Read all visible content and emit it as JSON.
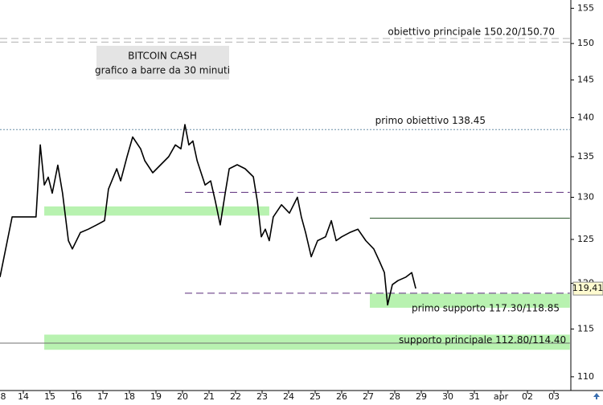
{
  "chart_data": {
    "type": "line",
    "title": "BITCOIN CASH",
    "subtitle": "grafico a barre da 30 minuti",
    "categories": [
      "8",
      "14",
      "15",
      "16",
      "17",
      "18",
      "19",
      "20",
      "21",
      "22",
      "23",
      "24",
      "25",
      "26",
      "27",
      "28",
      "29",
      "30",
      "31",
      "apr",
      "02",
      "03"
    ],
    "log_scale": true,
    "ylim": [
      108.6,
      156.2
    ],
    "yticks": [
      110,
      115,
      120,
      125,
      130,
      135,
      140,
      145,
      150,
      155
    ],
    "series": [
      {
        "name": "BITCOIN CASH",
        "color": "#000000",
        "x": [
          0.12,
          0.58,
          0.73,
          1.48,
          1.64,
          1.79,
          1.94,
          2.09,
          2.3,
          2.48,
          2.7,
          2.85,
          3.15,
          3.45,
          3.76,
          4.06,
          4.21,
          4.52,
          4.67,
          4.91,
          5.12,
          5.42,
          5.58,
          5.88,
          6.18,
          6.48,
          6.73,
          6.94,
          7.09,
          7.24,
          7.39,
          7.55,
          7.7,
          7.85,
          8.06,
          8.24,
          8.42,
          8.61,
          8.76,
          9.06,
          9.36,
          9.67,
          9.82,
          9.97,
          10.12,
          10.27,
          10.42,
          10.73,
          11.03,
          11.33,
          11.48,
          11.64,
          11.85,
          12.09,
          12.39,
          12.61,
          12.79,
          13.0,
          13.3,
          13.61,
          13.91,
          14.21,
          14.42,
          14.61,
          14.73,
          14.91,
          15.12,
          15.42,
          15.64,
          15.79
        ],
        "values": [
          120.7,
          127.65,
          127.65,
          127.65,
          136.5,
          131.5,
          132.45,
          130.5,
          133.95,
          130.5,
          124.85,
          123.9,
          125.8,
          126.2,
          126.7,
          127.2,
          131.0,
          133.5,
          132.0,
          135.0,
          137.5,
          136.0,
          134.5,
          133.0,
          134.0,
          135.0,
          136.5,
          136.0,
          139.1,
          136.5,
          137.0,
          134.5,
          133.0,
          131.5,
          132.0,
          129.5,
          126.7,
          130.5,
          133.5,
          134.0,
          133.5,
          132.5,
          129.5,
          125.3,
          126.2,
          124.85,
          127.65,
          129.1,
          128.1,
          130.0,
          127.65,
          125.8,
          123.0,
          124.85,
          125.3,
          127.2,
          124.85,
          125.3,
          125.8,
          126.2,
          124.85,
          123.9,
          122.5,
          121.2,
          117.6,
          119.85,
          120.3,
          120.7,
          121.2,
          119.41
        ]
      }
    ],
    "last_price": {
      "value": 119.41,
      "label": "119,41"
    },
    "levels": [
      {
        "value": 150.7,
        "style": "dashed",
        "color": "#b0b0b0",
        "start": 0,
        "end": 21.6
      },
      {
        "value": 150.2,
        "style": "dashed",
        "color": "#b0b0b0",
        "start": 0,
        "end": 21.6
      },
      {
        "value": 138.45,
        "style": "dotted",
        "color": "#6a8fa8",
        "start": 0,
        "end": 21.6
      },
      {
        "value": 130.6,
        "style": "dashed",
        "color": "#5a2a7a",
        "start": 7.09,
        "end": 21.6
      },
      {
        "value": 127.5,
        "style": "solid",
        "color": "#2e5a2e",
        "start": 14.06,
        "end": 21.6
      },
      {
        "value": 118.9,
        "style": "dashed",
        "color": "#5a2a7a",
        "start": 7.09,
        "end": 21.6
      },
      {
        "value": 113.5,
        "style": "solid",
        "color": "#707070",
        "start": 0,
        "end": 21.6
      }
    ],
    "zones": [
      {
        "from": 127.8,
        "to": 128.9,
        "start": 1.79,
        "end": 10.27,
        "color": "#b8f2b0"
      },
      {
        "from": 117.3,
        "to": 118.85,
        "start": 14.06,
        "end": 21.6,
        "color": "#b8f2b0"
      },
      {
        "from": 112.8,
        "to": 114.4,
        "start": 1.79,
        "end": 21.6,
        "color": "#b8f2b0"
      }
    ],
    "annotations": [
      "obiettivo principale 150.20/150.70",
      "primo obiettivo 138.45",
      "primo supporto 117.30/118.85",
      "supporto principale 112.80/114.40"
    ]
  }
}
